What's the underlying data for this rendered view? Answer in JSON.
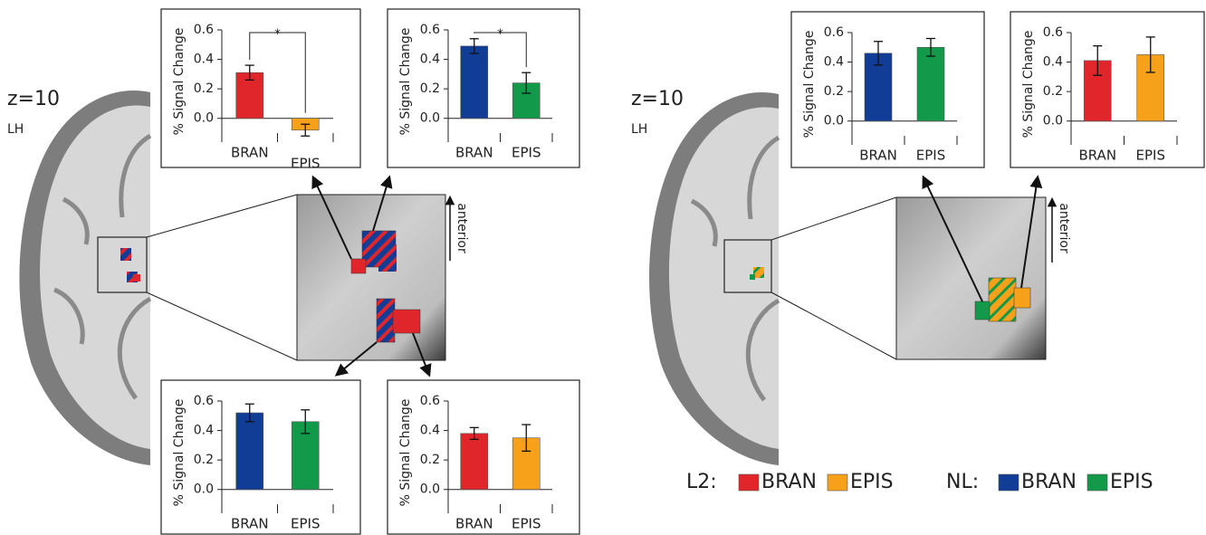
{
  "chart_data": [
    {
      "type": "bar",
      "ylabel": "% Signal Change",
      "categories": [
        "BRAN",
        "EPIS"
      ],
      "values": [
        0.31,
        -0.08
      ],
      "errors": [
        0.05,
        0.04
      ],
      "colors": [
        "#e1262b",
        "#f7a11a"
      ],
      "ylim": [
        -0.1,
        0.6
      ],
      "yticks": [
        {
          "value": 0,
          "label": "0.0"
        },
        0.2,
        0.4,
        0.6
      ],
      "annotation": "*"
    },
    {
      "type": "bar",
      "ylabel": "% Signal Change",
      "categories": [
        "BRAN",
        "EPIS"
      ],
      "values": [
        0.49,
        0.24
      ],
      "errors": [
        0.05,
        0.07
      ],
      "colors": [
        "#123d96",
        "#13994a"
      ],
      "ylim": [
        -0.1,
        0.6
      ],
      "yticks": [
        {
          "value": 0,
          "label": "0.0"
        },
        0.2,
        0.4,
        0.6
      ],
      "annotation": "*"
    },
    {
      "type": "bar",
      "ylabel": "% Signal Change",
      "categories": [
        "BRAN",
        "EPIS"
      ],
      "values": [
        0.52,
        0.46
      ],
      "errors": [
        0.06,
        0.08
      ],
      "colors": [
        "#123d96",
        "#13994a"
      ],
      "ylim": [
        -0.1,
        0.6
      ],
      "yticks": [
        {
          "value": 0,
          "label": "0.0"
        },
        0.2,
        0.4,
        0.6
      ]
    },
    {
      "type": "bar",
      "ylabel": "% Signal Change",
      "categories": [
        "BRAN",
        "EPIS"
      ],
      "values": [
        0.38,
        0.35
      ],
      "errors": [
        0.04,
        0.09
      ],
      "colors": [
        "#e1262b",
        "#f7a11a"
      ],
      "ylim": [
        -0.1,
        0.6
      ],
      "yticks": [
        {
          "value": 0,
          "label": "0.0"
        },
        0.2,
        0.4,
        0.6
      ]
    },
    {
      "type": "bar",
      "ylabel": "% Signal Change",
      "categories": [
        "BRAN",
        "EPIS"
      ],
      "values": [
        0.46,
        0.5
      ],
      "errors": [
        0.08,
        0.06
      ],
      "colors": [
        "#123d96",
        "#13994a"
      ],
      "ylim": [
        -0.1,
        0.6
      ],
      "yticks": [
        {
          "value": 0,
          "label": "0.0"
        },
        0.2,
        0.4,
        0.6
      ]
    },
    {
      "type": "bar",
      "ylabel": "% Signal Change",
      "categories": [
        "BRAN",
        "EPIS"
      ],
      "values": [
        0.41,
        0.45
      ],
      "errors": [
        0.1,
        0.12
      ],
      "colors": [
        "#e1262b",
        "#f7a11a"
      ],
      "ylim": [
        -0.1,
        0.6
      ],
      "yticks": [
        {
          "value": 0,
          "label": "0.0"
        },
        0.2,
        0.4,
        0.6
      ]
    }
  ],
  "panels": [
    {
      "slice": "z=10",
      "hemisphere": "LH",
      "direction": "anterior"
    },
    {
      "slice": "z=10",
      "hemisphere": "LH",
      "direction": "anterior"
    }
  ],
  "legend": {
    "groups": [
      {
        "label": "L2:",
        "items": [
          {
            "name": "BRAN",
            "color": "#e1262b"
          },
          {
            "name": "EPIS",
            "color": "#f7a11a"
          }
        ]
      },
      {
        "label": "NL:",
        "items": [
          {
            "name": "BRAN",
            "color": "#123d96"
          },
          {
            "name": "EPIS",
            "color": "#13994a"
          }
        ]
      }
    ]
  }
}
